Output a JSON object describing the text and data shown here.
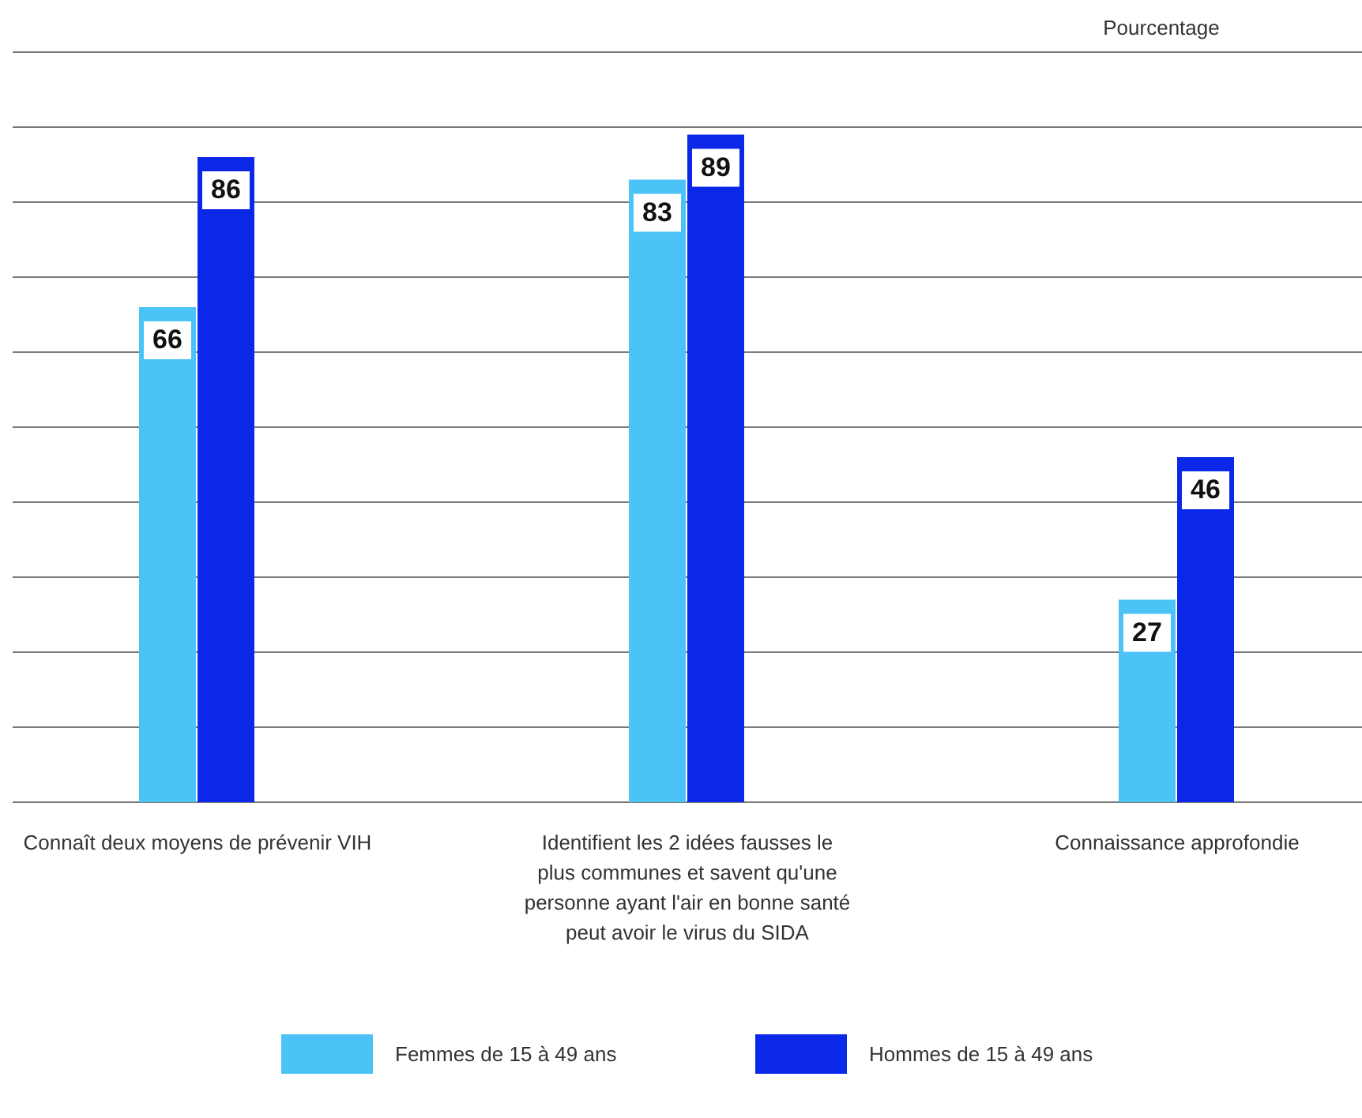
{
  "chart_data": {
    "type": "bar",
    "ylabel": "Pourcentage",
    "categories": [
      "Connaît deux moyens de prévenir VIH",
      "Identifient les 2 idées fausses le plus communes et savent qu'une personne ayant l'air en bonne santé peut avoir le virus du SIDA",
      "Connaissance approfondie"
    ],
    "series": [
      {
        "name": "Femmes de 15 à 49 ans",
        "color": "#4cc3f7",
        "values": [
          66,
          83,
          27
        ]
      },
      {
        "name": "Hommes de 15 à 49 ans",
        "color": "#0b28e8",
        "values": [
          86,
          89,
          46
        ]
      }
    ],
    "ylim": [
      0,
      100
    ],
    "yticks": [
      {
        "value": 0,
        "label": null
      },
      {
        "value": 10,
        "label": null
      },
      {
        "value": 20,
        "label": null
      },
      {
        "value": 30,
        "label": null
      },
      {
        "value": 40,
        "label": null
      },
      {
        "value": 50,
        "label": null
      },
      {
        "value": 60,
        "label": null
      },
      {
        "value": 70,
        "label": null
      },
      {
        "value": 80,
        "label": null
      },
      {
        "value": 90,
        "label": null
      },
      {
        "value": 100,
        "label": null
      }
    ],
    "grid": "y",
    "tick_labels": "x",
    "data_labels": true,
    "legend": "bottom"
  }
}
